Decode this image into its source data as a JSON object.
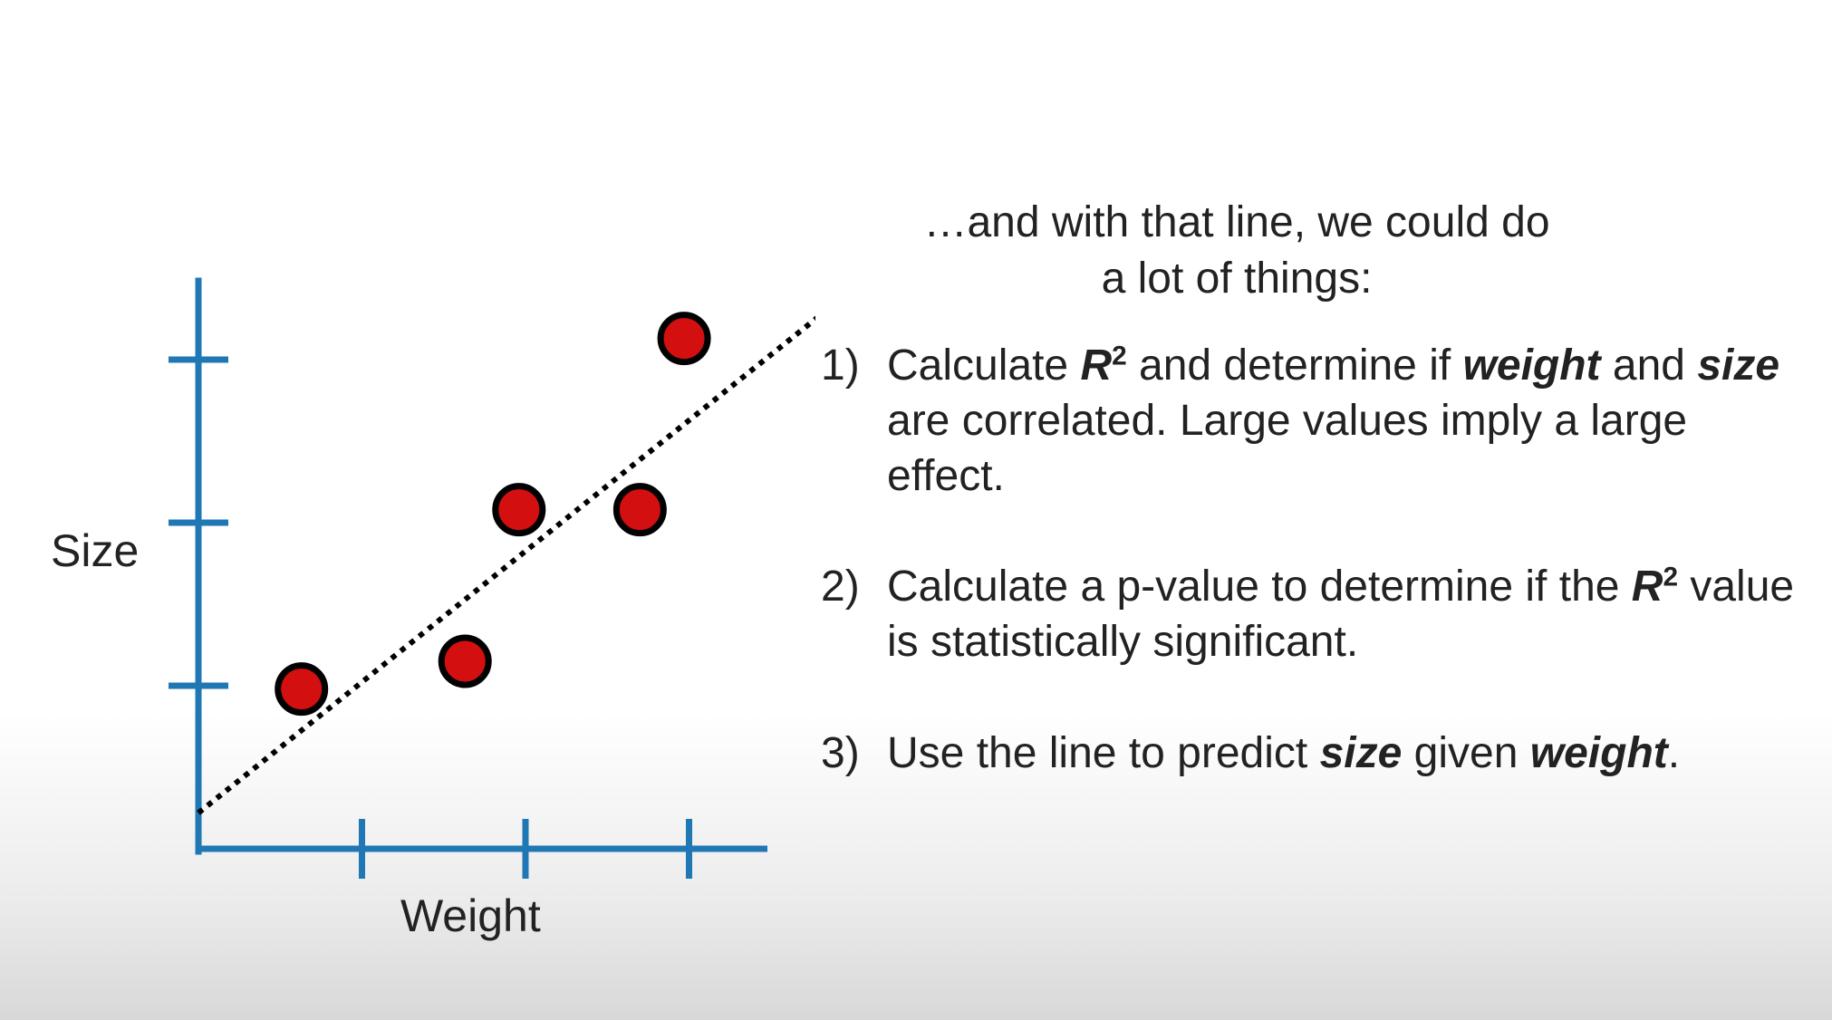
{
  "chart_data": {
    "type": "scatter",
    "xlabel": "Weight",
    "ylabel": "Size",
    "xlim": [
      0,
      3.5
    ],
    "ylim": [
      0,
      3.0
    ],
    "xticks": [
      1,
      2,
      3
    ],
    "yticks": [
      1,
      2,
      3
    ],
    "points": [
      {
        "x": 0.63,
        "y": 0.98
      },
      {
        "x": 1.63,
        "y": 1.15
      },
      {
        "x": 1.96,
        "y": 2.08
      },
      {
        "x": 2.7,
        "y": 2.08
      },
      {
        "x": 2.97,
        "y": 3.13
      }
    ],
    "fit_line": {
      "x1": 0,
      "y1": 0.22,
      "x2": 3.8,
      "y2": 3.27
    },
    "colors": {
      "axis": "#1f77b4",
      "point_fill": "#d40f0f",
      "point_edge": "#000000",
      "fit_line": "#000000"
    }
  },
  "text": {
    "intro_line1": "…and with that line, we could do",
    "intro_line2": "a lot of things:",
    "items": [
      {
        "number": "1)",
        "t1": "Calculate ",
        "r2": "R",
        "sup": "2",
        "t2": " and determine if ",
        "b1": "weight",
        "t3": " and ",
        "b2": "size",
        "t4": " are correlated. Large values imply a large effect."
      },
      {
        "number": "2)",
        "t1": "Calculate a p-value to determine if the ",
        "r2": "R",
        "sup": "2",
        "t2": " value is statistically significant."
      },
      {
        "number": "3)",
        "t1": "Use the line to predict ",
        "b1": "size",
        "t2": " given ",
        "b2": "weight",
        "t3": "."
      }
    ]
  }
}
